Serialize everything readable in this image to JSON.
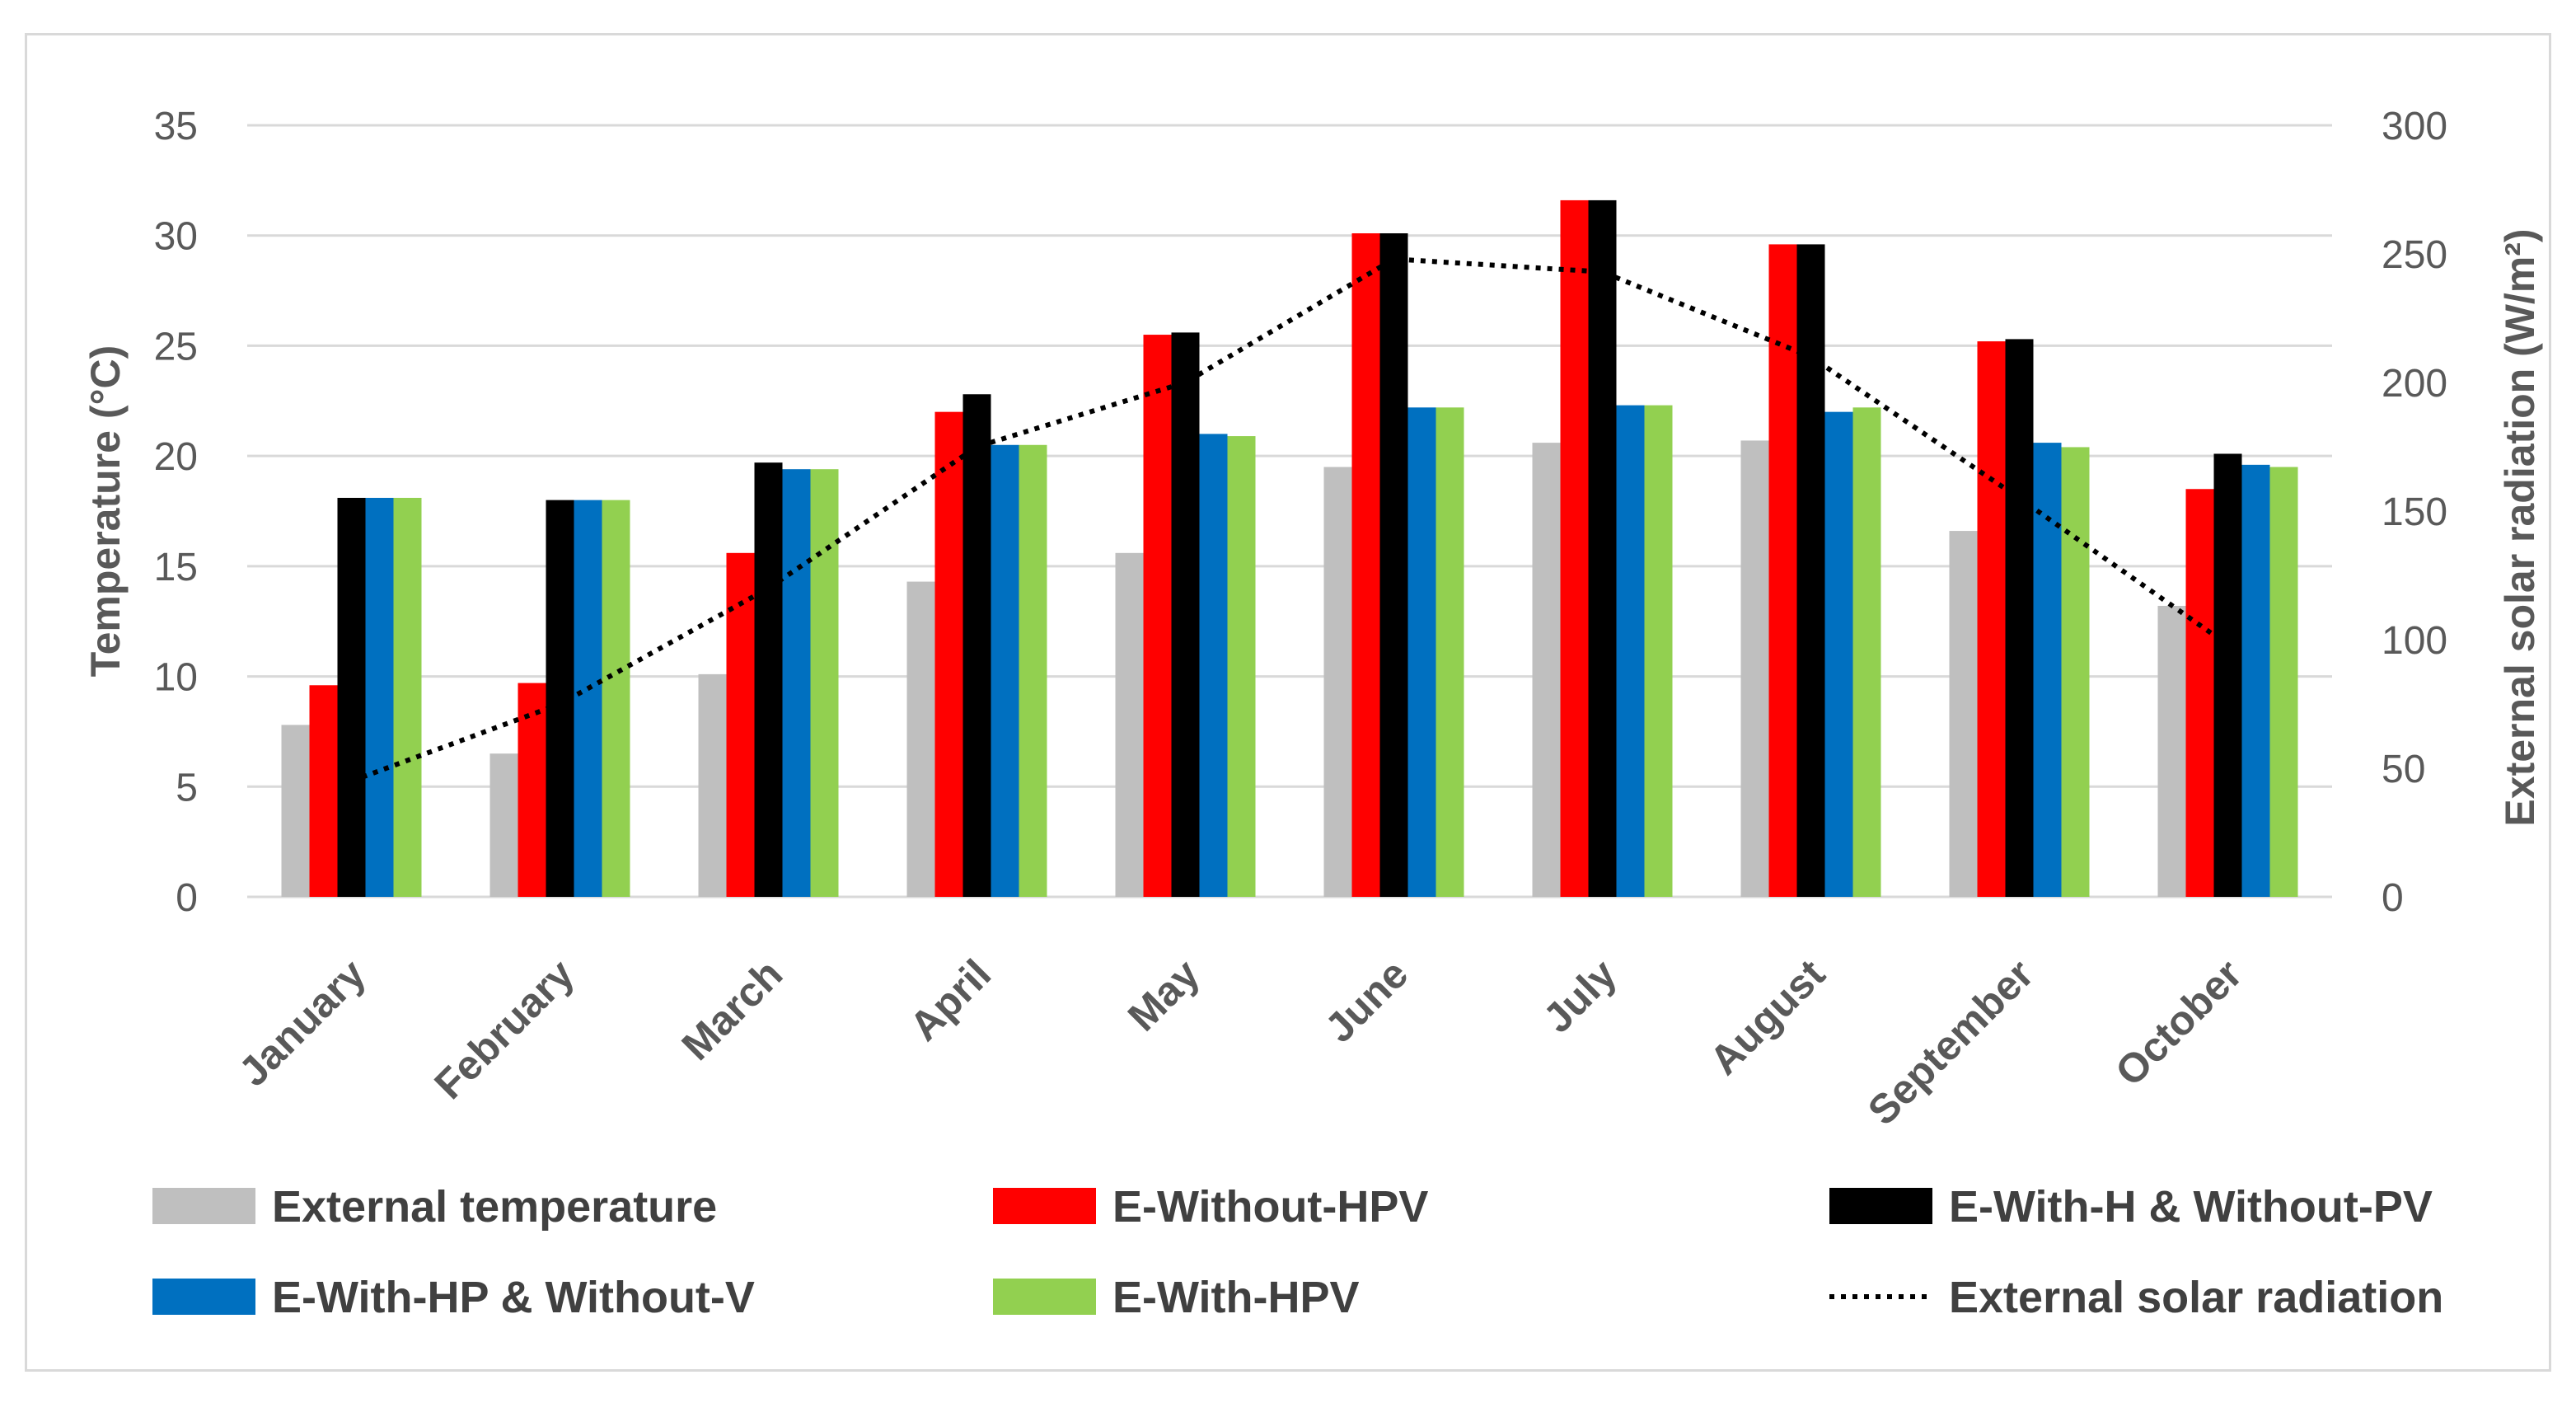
{
  "chart_data": {
    "type": "bar",
    "categories": [
      "January",
      "February",
      "March",
      "April",
      "May",
      "June",
      "July",
      "August",
      "September",
      "October"
    ],
    "series": [
      {
        "name": "External temperature",
        "color": "#bfbfbf",
        "axis": "left",
        "values": [
          7.8,
          6.5,
          10.1,
          14.3,
          15.6,
          19.5,
          20.6,
          20.7,
          16.6,
          13.2
        ]
      },
      {
        "name": "E-Without-HPV",
        "color": "#ff0000",
        "axis": "left",
        "values": [
          9.6,
          9.7,
          15.6,
          22.0,
          25.5,
          30.1,
          31.6,
          29.6,
          25.2,
          18.5
        ]
      },
      {
        "name": "E-With-H & Without-PV",
        "color": "#000000",
        "axis": "left",
        "values": [
          18.1,
          18.0,
          19.7,
          22.8,
          25.6,
          30.1,
          31.6,
          29.6,
          25.3,
          20.1
        ]
      },
      {
        "name": "E-With-HP & Without-V",
        "color": "#0070c0",
        "axis": "left",
        "values": [
          18.1,
          18.0,
          19.4,
          20.5,
          21.0,
          22.2,
          22.3,
          22.0,
          20.6,
          19.6
        ]
      },
      {
        "name": "E-With-HPV",
        "color": "#92d050",
        "axis": "left",
        "values": [
          18.1,
          18.0,
          19.4,
          20.5,
          20.9,
          22.2,
          22.3,
          22.2,
          20.4,
          19.5
        ]
      },
      {
        "name": "External solar radiation",
        "type": "line",
        "style": "dotted",
        "color": "#000000",
        "axis": "right",
        "values": [
          45,
          75,
          120,
          175,
          200,
          248,
          243,
          210,
          155,
          98
        ]
      }
    ],
    "y_left": {
      "label": "Temperature (°C)",
      "ylim": [
        0,
        35
      ],
      "ticks": [
        0,
        5,
        10,
        15,
        20,
        25,
        30,
        35
      ]
    },
    "y_right": {
      "label": "External solar radiation (W/m²)",
      "ylim": [
        0,
        300
      ],
      "ticks": [
        0,
        50,
        100,
        150,
        200,
        250,
        300
      ]
    },
    "grid": true,
    "legend_position": "bottom"
  }
}
